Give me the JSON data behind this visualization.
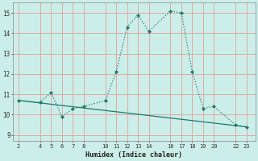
{
  "xlabel": "Humidex (Indice chaleur)",
  "bg_color": "#cceee8",
  "grid_color": "#ddaaaa",
  "line_color": "#1a7a6e",
  "xticks": [
    2,
    4,
    5,
    6,
    7,
    8,
    10,
    11,
    12,
    13,
    14,
    16,
    17,
    18,
    19,
    20,
    22,
    23
  ],
  "yticks": [
    9,
    10,
    11,
    12,
    13,
    14,
    15
  ],
  "ylim": [
    8.7,
    15.5
  ],
  "xlim": [
    1.5,
    23.8
  ],
  "line1_x": [
    2,
    4,
    5,
    6,
    7,
    8,
    10,
    11,
    12,
    13,
    14,
    16,
    17,
    18,
    19,
    20,
    22,
    23
  ],
  "line1_y": [
    10.7,
    10.6,
    11.1,
    9.9,
    10.3,
    10.4,
    10.7,
    12.1,
    14.3,
    14.9,
    14.1,
    15.1,
    15.0,
    12.1,
    10.3,
    10.4,
    9.5,
    9.4
  ],
  "line2_x": [
    2,
    23
  ],
  "line2_y": [
    10.7,
    9.4
  ]
}
